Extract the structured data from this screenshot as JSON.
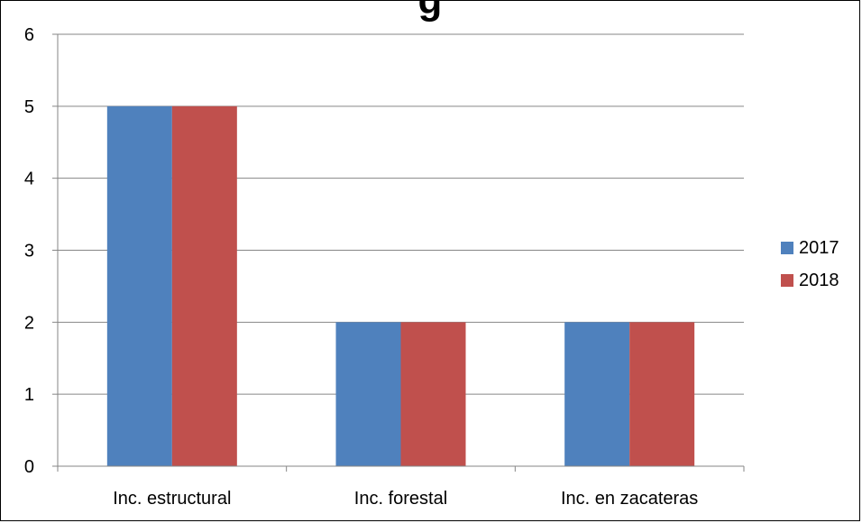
{
  "chart_data": {
    "type": "bar",
    "title": "g",
    "categories": [
      "Inc. estructural",
      "Inc. forestal",
      "Inc. en zacateras"
    ],
    "series": [
      {
        "name": "2017",
        "color": "#4F81BD",
        "values": [
          5,
          2,
          2
        ]
      },
      {
        "name": "2018",
        "color": "#C0504D",
        "values": [
          5,
          2,
          2
        ]
      }
    ],
    "yticks": [
      "0",
      "1",
      "2",
      "3",
      "4",
      "5",
      "6"
    ],
    "ylim": [
      0,
      6
    ],
    "grid": true,
    "legend_position": "right",
    "xlabel": "",
    "ylabel": ""
  }
}
